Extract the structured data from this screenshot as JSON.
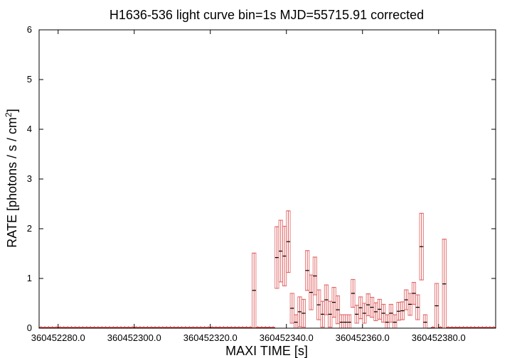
{
  "chart_data": {
    "type": "bar",
    "title": "H1636-536 light curve bin=1s MJD=55715.91 corrected",
    "xlabel": "MAXI TIME [s]",
    "ylabel": "RATE [photons / s / cm",
    "ylabel_sup": "2",
    "ylabel_close": "]",
    "xlim": [
      360452275.0,
      360452395.0
    ],
    "ylim": [
      0,
      6
    ],
    "x_ticks": [
      360452280.0,
      360452300.0,
      360452320.0,
      360452340.0,
      360452360.0,
      360452380.0
    ],
    "x_tick_labels": [
      "360452280.0",
      "360452300.0",
      "360452320.0",
      "360452340.0",
      "360452360.0",
      "360452380.0"
    ],
    "y_ticks": [
      0,
      1,
      2,
      3,
      4,
      5,
      6
    ],
    "y_tick_labels": [
      "0",
      "1",
      "2",
      "3",
      "4",
      "5",
      "6"
    ],
    "bin_width": 1,
    "series": [
      {
        "x": [
          360452331.5,
          360452337.5,
          360452338.5,
          360452339.5,
          360452340.5,
          360452341.5,
          360452342.5,
          360452343.5,
          360452344.5,
          360452345.5,
          360452346.5,
          360452347.5,
          360452348.5,
          360452349.5,
          360452350.5,
          360452351.5,
          360452352.5,
          360452353.5,
          360452354.5,
          360452355.5,
          360452356.5,
          360452357.5,
          360452358.5,
          360452359.5,
          360452360.5,
          360452361.5,
          360452362.5,
          360452363.5,
          360452364.5,
          360452365.5,
          360452366.5,
          360452367.5,
          360452368.5,
          360452369.5,
          360452370.5,
          360452371.5,
          360452372.5,
          360452373.5,
          360452374.5,
          360452375.5,
          360452376.5,
          360452377.5,
          360452379.5,
          360452381.5
        ],
        "y": [
          0.76,
          1.42,
          1.55,
          1.45,
          1.74,
          0.4,
          0.12,
          0.33,
          0.3,
          1.16,
          0.72,
          1.05,
          0.47,
          0.28,
          0.57,
          0.28,
          0.52,
          0.37,
          0.12,
          0.12,
          0.12,
          0.7,
          0.28,
          0.41,
          0.3,
          0.47,
          0.42,
          0.33,
          0.38,
          0.3,
          0.12,
          0.3,
          0.12,
          0.34,
          0.35,
          0.57,
          0.48,
          0.7,
          0.42,
          1.64,
          0.12,
          0.0,
          0.45,
          0.89
        ],
        "err": [
          0.75,
          0.62,
          0.62,
          0.6,
          0.62,
          0.3,
          0.15,
          0.3,
          0.28,
          0.4,
          0.35,
          0.38,
          0.3,
          0.26,
          0.3,
          0.26,
          0.3,
          0.28,
          0.15,
          0.15,
          0.15,
          0.28,
          0.18,
          0.22,
          0.2,
          0.22,
          0.2,
          0.18,
          0.2,
          0.18,
          0.15,
          0.18,
          0.15,
          0.18,
          0.18,
          0.2,
          0.22,
          0.22,
          0.25,
          0.67,
          0.15,
          0.0,
          0.45,
          0.9
        ]
      }
    ],
    "colors": {
      "data": "#cc0000",
      "error": "#e06060",
      "axis": "#000000"
    },
    "grid": false
  }
}
